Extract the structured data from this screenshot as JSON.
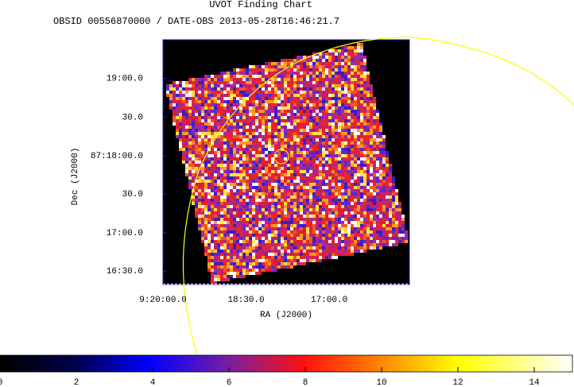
{
  "chart_data": {
    "type": "image",
    "title": "UVOT Finding Chart",
    "subtitle": "OBSID 00556870000 / DATE-OBS 2013-05-28T16:46:21.7",
    "xlabel": "RA (J2000)",
    "ylabel": "Dec (J2000)",
    "xlim": [
      140.0,
      138.888
    ],
    "xticks": [
      {
        "value": 140.0,
        "label": "9:20:00.0"
      },
      {
        "value": 139.625,
        "label": "18:30.0"
      },
      {
        "value": 139.25,
        "label": "17:00.0"
      }
    ],
    "ylim": [
      87.2721,
      87.3251
    ],
    "yticks": [
      {
        "value": 87.3167,
        "label": "19:00.0"
      },
      {
        "value": 87.3083,
        "label": "30.0"
      },
      {
        "value": 87.3,
        "label": "87:18:00.0"
      },
      {
        "value": 87.2917,
        "label": "30.0"
      },
      {
        "value": 87.2833,
        "label": "17:00.0"
      },
      {
        "value": 87.275,
        "label": "16:30.0"
      }
    ],
    "colorbar": {
      "lim": [
        0,
        15
      ],
      "ticks": [
        0,
        2,
        4,
        6,
        8,
        10,
        12,
        14
      ]
    }
  }
}
